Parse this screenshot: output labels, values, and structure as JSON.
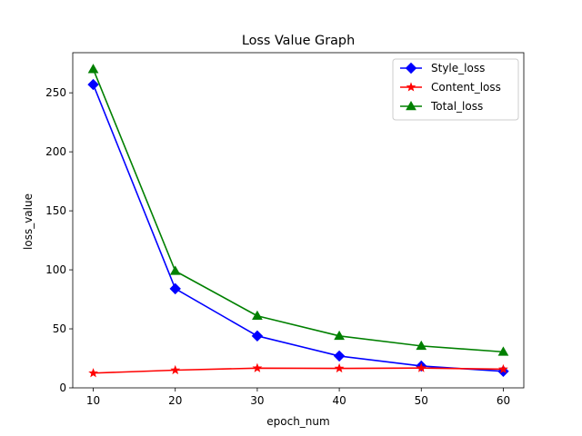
{
  "chart_data": {
    "type": "line",
    "title": "Loss Value Graph",
    "xlabel": "epoch_num",
    "ylabel": "loss_value",
    "x": [
      10,
      20,
      30,
      40,
      50,
      60
    ],
    "xlim": [
      7.5,
      62.5
    ],
    "ylim": [
      0,
      284
    ],
    "xticks": [
      10,
      20,
      30,
      40,
      50,
      60
    ],
    "yticks": [
      0,
      50,
      100,
      150,
      200,
      250
    ],
    "grid": false,
    "legend_position": "top-right",
    "series": [
      {
        "name": "Style_loss",
        "color": "#0000ff",
        "marker": "diamond",
        "values": [
          257,
          84,
          44,
          27,
          18.5,
          14
        ]
      },
      {
        "name": "Content_loss",
        "color": "#ff0000",
        "marker": "star",
        "values": [
          12.5,
          15,
          16.7,
          16.5,
          16.8,
          15.8
        ]
      },
      {
        "name": "Total_loss",
        "color": "#008000",
        "marker": "triangle",
        "values": [
          270,
          99,
          61,
          44,
          35.5,
          30.5
        ]
      }
    ]
  }
}
